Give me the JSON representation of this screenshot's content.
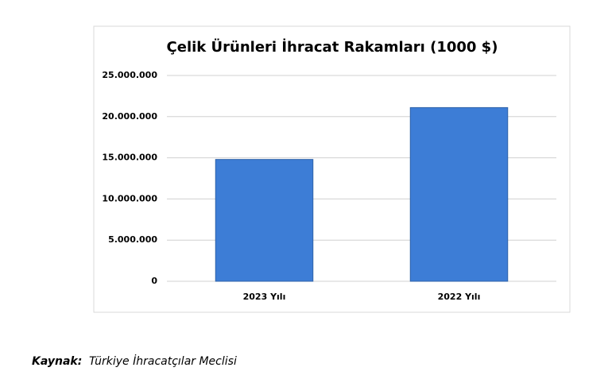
{
  "chart_data": {
    "type": "bar",
    "title": "Çelik Ürünleri İhracat Rakamları (1000 $)",
    "categories": [
      "2023 Yılı",
      "2022 Yılı"
    ],
    "values": [
      14800000,
      21100000
    ],
    "color": "#3d7dd6",
    "ylim": [
      0,
      25000000
    ],
    "yticks": [
      0,
      {
        "value": 5000000,
        "label": "5.000.000"
      },
      {
        "value": 10000000,
        "label": "10.000.000"
      },
      {
        "value": 15000000,
        "label": "15.000.000"
      },
      {
        "value": 20000000,
        "label": "20.000.000"
      },
      {
        "value": 25000000,
        "label": "25.000.000"
      }
    ],
    "grid": true
  },
  "source": {
    "label": "Kaynak:",
    "text": "Türkiye İhracatçılar Meclisi"
  }
}
